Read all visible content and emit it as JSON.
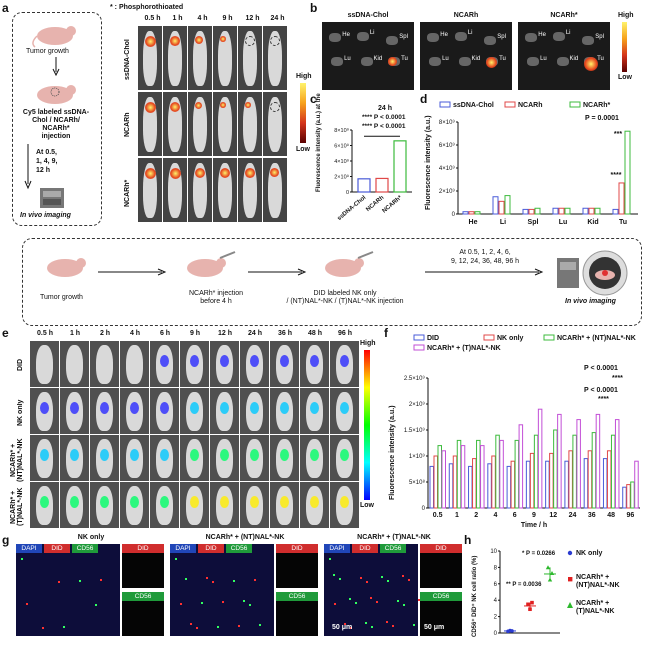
{
  "panels": {
    "a": "a",
    "b": "b",
    "c": "c",
    "d": "d",
    "e": "e",
    "f": "f",
    "g": "g",
    "h": "h"
  },
  "a": {
    "tumor_growth": "Tumor growth",
    "injection": [
      "Cy5 labeled ssDNA-",
      "Chol / NCARh/",
      "NCARh*",
      "injection"
    ],
    "timepoints": [
      "At 0.5,",
      "1, 4,  9,",
      "12  h"
    ],
    "imaging": "In vivo imaging",
    "note": "* : Phosphorothioated",
    "times": [
      "0.5 h",
      "1 h",
      "4 h",
      "9 h",
      "12 h",
      "24 h"
    ],
    "rows": [
      "ssDNA-Chol",
      "NCARh",
      "NCARh*"
    ],
    "high": "High",
    "low": "Low"
  },
  "b": {
    "groups": [
      "ssDNA-Chol",
      "NCARh",
      "NCARh*"
    ],
    "organs": [
      "He",
      "Li",
      "Spl",
      "Lu",
      "Kid",
      "Tu"
    ],
    "high": "High",
    "low": "Low"
  },
  "chart_c": {
    "type": "bar",
    "title": "24 h",
    "stat1": "**** P < 0.0001",
    "stat2": "**** P < 0.0001",
    "ylabel": "Fluorescence intensity (a.u.) at the tumor site",
    "categories": [
      "ssDNA-Chol",
      "NCARh",
      "NCARh*"
    ],
    "values": [
      1700000000.0,
      1750000000.0,
      6600000000.0
    ],
    "yticks": [
      "0",
      "2×10⁹",
      "4×10⁹",
      "6×10⁹",
      "8×10⁹"
    ],
    "ylim": [
      0,
      8000000000.0
    ],
    "colors": [
      "#4a5bd8",
      "#e04848",
      "#3dbb3d"
    ]
  },
  "chart_d": {
    "type": "bar",
    "ylabel": "Fluorescence intensity (a.u.)",
    "categories": [
      "He",
      "Li",
      "Spl",
      "Lu",
      "Kid",
      "Tu"
    ],
    "series": [
      {
        "name": "ssDNA-Chol",
        "values": [
          200000000.0,
          1500000000.0,
          400000000.0,
          500000000.0,
          500000000.0,
          400000000.0
        ]
      },
      {
        "name": "NCARh",
        "values": [
          200000000.0,
          1100000000.0,
          400000000.0,
          500000000.0,
          500000000.0,
          2700000000.0
        ]
      },
      {
        "name": "NCARh*",
        "values": [
          200000000.0,
          1600000000.0,
          500000000.0,
          500000000.0,
          500000000.0,
          7200000000.0
        ]
      }
    ],
    "yticks": [
      "0",
      "2×10⁹",
      "4×10⁹",
      "6×10⁹",
      "8×10⁹"
    ],
    "ylim": [
      0,
      8000000000.0
    ],
    "stat": "P = 0.0001",
    "stars1": "****",
    "stars2": "***",
    "colors": [
      "#4a5bd8",
      "#e04848",
      "#3dbb3d"
    ]
  },
  "workflow": {
    "step1": "Tumor growth",
    "step2": [
      "NCARh* injection",
      "before 4 h"
    ],
    "step3": [
      "DID labeled  NK only",
      "/ (NT)NAL*-NK / (T)NAL*-NK injection"
    ],
    "step4": [
      "At 0.5, 1, 2, 4, 6,",
      "9, 12, 24, 36, 48, 96 h"
    ],
    "step5": "In vivo imaging"
  },
  "e": {
    "times": [
      "0.5 h",
      "1 h",
      "2 h",
      "4 h",
      "6 h",
      "9 h",
      "12 h",
      "24 h",
      "36 h",
      "48 h",
      "96 h"
    ],
    "rows": [
      "DID",
      "NK only",
      "NCARh* + (NT)NAL*-NK",
      "NCARh* + (T)NAL*-NK"
    ],
    "high": "High",
    "low": "Low"
  },
  "chart_f": {
    "type": "bar",
    "ylabel": "Fluorescence intensity (a.u.)",
    "xlabel": "Time / h",
    "categories": [
      "0.5",
      "1",
      "2",
      "4",
      "6",
      "9",
      "12",
      "24",
      "36",
      "48",
      "96"
    ],
    "series": [
      {
        "name": "DID",
        "values": [
          800000000.0,
          850000000.0,
          800000000.0,
          850000000.0,
          800000000.0,
          900000000.0,
          900000000.0,
          900000000.0,
          950000000.0,
          950000000.0,
          400000000.0
        ]
      },
      {
        "name": "NK only",
        "values": [
          1000000000.0,
          1000000000.0,
          950000000.0,
          1000000000.0,
          900000000.0,
          1050000000.0,
          1050000000.0,
          1100000000.0,
          1100000000.0,
          1100000000.0,
          450000000.0
        ]
      },
      {
        "name": "NCARh* + (NT)NAL*-NK",
        "values": [
          1200000000.0,
          1300000000.0,
          1300000000.0,
          1400000000.0,
          1300000000.0,
          1400000000.0,
          1500000000.0,
          1400000000.0,
          1450000000.0,
          1400000000.0,
          500000000.0
        ]
      },
      {
        "name": "NCARh* + (T)NAL*-NK",
        "values": [
          1100000000.0,
          1200000000.0,
          1200000000.0,
          1300000000.0,
          1600000000.0,
          1900000000.0,
          1800000000.0,
          1700000000.0,
          1800000000.0,
          1700000000.0,
          900000000.0
        ]
      }
    ],
    "yticks": [
      "0",
      "5×10⁸",
      "1×10⁹",
      "1.5×10⁹",
      "2×10⁹",
      "2.5×10⁹"
    ],
    "ylim": [
      0,
      2500000000.0
    ],
    "stat1": "P < 0.0001",
    "stat2": "****",
    "stat3": "P < 0.0001",
    "stat4": "****",
    "colors": [
      "#4a5bd8",
      "#e04848",
      "#3dbb3d",
      "#c24fd6"
    ]
  },
  "g": {
    "groups": [
      "NK only",
      "NCARh* + (NT)NAL*-NK",
      "NCARh* + (T)NAL*-NK"
    ],
    "tags": [
      "DAPI",
      "DID",
      "CD56"
    ],
    "scale": "50 μm"
  },
  "chart_h": {
    "type": "scatter",
    "ylabel": "CD56⁺ DiD⁺ NK cell ratio (%)",
    "yticks": [
      "0",
      "2",
      "4",
      "6",
      "8",
      "10"
    ],
    "ylim": [
      0,
      10
    ],
    "groups": [
      {
        "name": "NK only",
        "values": [
          0.2,
          0.3,
          0.25
        ],
        "mean": 0.25,
        "color": "#2a3bd0",
        "marker": "circle"
      },
      {
        "name": "NCARh* + (NT)NAL*-NK",
        "values": [
          3.5,
          2.9,
          3.7
        ],
        "mean": 3.3,
        "color": "#e02020",
        "marker": "square"
      },
      {
        "name": "NCARh* + (T)NAL*-NK",
        "values": [
          8.0,
          6.5,
          7.3
        ],
        "mean": 7.2,
        "color": "#2db82d",
        "marker": "triangle"
      }
    ],
    "stat1": "** P = 0.0036",
    "stat2": "* P = 0.0266"
  }
}
